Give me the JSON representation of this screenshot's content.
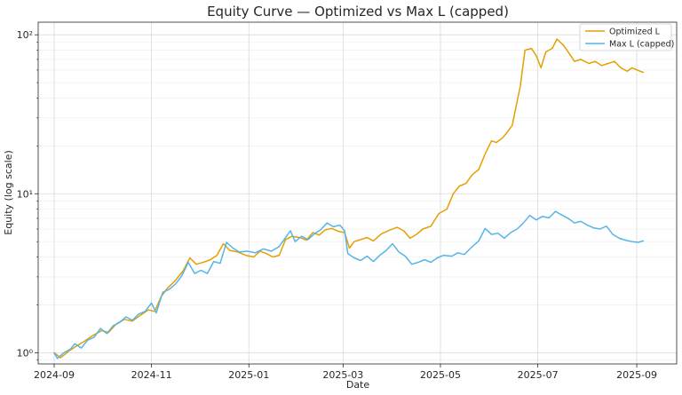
{
  "chart_data": {
    "type": "line",
    "title": "Equity Curve — Optimized vs Max L (capped)",
    "xlabel": "Date",
    "ylabel": "Equity (log scale)",
    "yscale": "log",
    "ylim": [
      0.85,
      120
    ],
    "xlim": [
      "2024-08-22",
      "2025-09-26"
    ],
    "grid": true,
    "legend_position": "top-right",
    "x_ticks": [
      "2024-09",
      "2024-11",
      "2025-01",
      "2025-03",
      "2025-05",
      "2025-07",
      "2025-09"
    ],
    "y_ticks": [
      {
        "value": 1,
        "label": "10⁰"
      },
      {
        "value": 10,
        "label": "10¹"
      },
      {
        "value": 100,
        "label": "10²"
      }
    ],
    "series": [
      {
        "name": "Optimized L",
        "color": "#E69F00",
        "points": [
          [
            "2024-09-01",
            1.0
          ],
          [
            "2024-09-05",
            0.93
          ],
          [
            "2024-09-10",
            1.02
          ],
          [
            "2024-09-15",
            1.1
          ],
          [
            "2024-09-20",
            1.18
          ],
          [
            "2024-09-25",
            1.28
          ],
          [
            "2024-10-01",
            1.38
          ],
          [
            "2024-10-05",
            1.34
          ],
          [
            "2024-10-10",
            1.52
          ],
          [
            "2024-10-15",
            1.62
          ],
          [
            "2024-10-20",
            1.58
          ],
          [
            "2024-10-25",
            1.72
          ],
          [
            "2024-10-30",
            1.86
          ],
          [
            "2024-11-03",
            1.82
          ],
          [
            "2024-11-07",
            2.25
          ],
          [
            "2024-11-11",
            2.55
          ],
          [
            "2024-11-16",
            2.85
          ],
          [
            "2024-11-21",
            3.3
          ],
          [
            "2024-11-25",
            3.95
          ],
          [
            "2024-11-29",
            3.6
          ],
          [
            "2024-12-04",
            3.72
          ],
          [
            "2024-12-08",
            3.85
          ],
          [
            "2024-12-12",
            4.1
          ],
          [
            "2024-12-16",
            4.85
          ],
          [
            "2024-12-20",
            4.4
          ],
          [
            "2024-12-25",
            4.3
          ],
          [
            "2024-12-30",
            4.1
          ],
          [
            "2025-01-04",
            4.0
          ],
          [
            "2025-01-08",
            4.35
          ],
          [
            "2025-01-12",
            4.2
          ],
          [
            "2025-01-16",
            4.0
          ],
          [
            "2025-01-20",
            4.1
          ],
          [
            "2025-01-24",
            5.15
          ],
          [
            "2025-01-28",
            5.4
          ],
          [
            "2025-02-02",
            5.3
          ],
          [
            "2025-02-06",
            5.1
          ],
          [
            "2025-02-10",
            5.7
          ],
          [
            "2025-02-14",
            5.5
          ],
          [
            "2025-02-18",
            5.95
          ],
          [
            "2025-02-22",
            6.05
          ],
          [
            "2025-02-26",
            5.8
          ],
          [
            "2025-03-02",
            5.7
          ],
          [
            "2025-03-05",
            4.55
          ],
          [
            "2025-03-08",
            5.0
          ],
          [
            "2025-03-12",
            5.15
          ],
          [
            "2025-03-16",
            5.3
          ],
          [
            "2025-03-20",
            5.05
          ],
          [
            "2025-03-25",
            5.6
          ],
          [
            "2025-03-30",
            5.9
          ],
          [
            "2025-04-04",
            6.15
          ],
          [
            "2025-04-08",
            5.85
          ],
          [
            "2025-04-12",
            5.25
          ],
          [
            "2025-04-16",
            5.55
          ],
          [
            "2025-04-20",
            6.0
          ],
          [
            "2025-04-25",
            6.25
          ],
          [
            "2025-04-30",
            7.5
          ],
          [
            "2025-05-05",
            8.0
          ],
          [
            "2025-05-09",
            10.0
          ],
          [
            "2025-05-13",
            11.2
          ],
          [
            "2025-05-17",
            11.6
          ],
          [
            "2025-05-21",
            13.2
          ],
          [
            "2025-05-25",
            14.2
          ],
          [
            "2025-05-29",
            17.8
          ],
          [
            "2025-06-02",
            21.5
          ],
          [
            "2025-06-05",
            21.0
          ],
          [
            "2025-06-09",
            22.5
          ],
          [
            "2025-06-12",
            24.5
          ],
          [
            "2025-06-15",
            27.0
          ],
          [
            "2025-06-18",
            38.0
          ],
          [
            "2025-06-20",
            47.0
          ],
          [
            "2025-06-23",
            80.0
          ],
          [
            "2025-06-27",
            82.0
          ],
          [
            "2025-06-30",
            74.0
          ],
          [
            "2025-07-03",
            62.0
          ],
          [
            "2025-07-06",
            78.0
          ],
          [
            "2025-07-10",
            82.0
          ],
          [
            "2025-07-13",
            94.0
          ],
          [
            "2025-07-17",
            86.0
          ],
          [
            "2025-07-20",
            78.0
          ],
          [
            "2025-07-24",
            68.0
          ],
          [
            "2025-07-28",
            70.0
          ],
          [
            "2025-08-02",
            66.0
          ],
          [
            "2025-08-06",
            68.0
          ],
          [
            "2025-08-10",
            64.0
          ],
          [
            "2025-08-14",
            66.0
          ],
          [
            "2025-08-18",
            68.0
          ],
          [
            "2025-08-22",
            62.0
          ],
          [
            "2025-08-26",
            59.0
          ],
          [
            "2025-08-29",
            62.0
          ],
          [
            "2025-09-03",
            59.0
          ],
          [
            "2025-09-05",
            58.0
          ]
        ]
      },
      {
        "name": "Max L (capped)",
        "color": "#56B4E9",
        "points": [
          [
            "2024-09-01",
            1.0
          ],
          [
            "2024-09-03",
            0.92
          ],
          [
            "2024-09-07",
            1.0
          ],
          [
            "2024-09-11",
            1.05
          ],
          [
            "2024-09-14",
            1.14
          ],
          [
            "2024-09-18",
            1.07
          ],
          [
            "2024-09-22",
            1.2
          ],
          [
            "2024-09-26",
            1.25
          ],
          [
            "2024-09-30",
            1.42
          ],
          [
            "2024-10-04",
            1.32
          ],
          [
            "2024-10-08",
            1.48
          ],
          [
            "2024-10-12",
            1.55
          ],
          [
            "2024-10-16",
            1.68
          ],
          [
            "2024-10-20",
            1.6
          ],
          [
            "2024-10-24",
            1.75
          ],
          [
            "2024-10-28",
            1.82
          ],
          [
            "2024-11-01",
            2.05
          ],
          [
            "2024-11-04",
            1.78
          ],
          [
            "2024-11-08",
            2.4
          ],
          [
            "2024-11-12",
            2.5
          ],
          [
            "2024-11-16",
            2.7
          ],
          [
            "2024-11-20",
            3.05
          ],
          [
            "2024-11-24",
            3.7
          ],
          [
            "2024-11-28",
            3.15
          ],
          [
            "2024-12-02",
            3.3
          ],
          [
            "2024-12-06",
            3.15
          ],
          [
            "2024-12-10",
            3.75
          ],
          [
            "2024-12-14",
            3.65
          ],
          [
            "2024-12-18",
            4.95
          ],
          [
            "2024-12-22",
            4.55
          ],
          [
            "2024-12-26",
            4.3
          ],
          [
            "2024-12-31",
            4.35
          ],
          [
            "2025-01-05",
            4.25
          ],
          [
            "2025-01-10",
            4.5
          ],
          [
            "2025-01-15",
            4.35
          ],
          [
            "2025-01-20",
            4.65
          ],
          [
            "2025-01-24",
            5.3
          ],
          [
            "2025-01-27",
            5.85
          ],
          [
            "2025-01-30",
            5.0
          ],
          [
            "2025-02-03",
            5.4
          ],
          [
            "2025-02-07",
            5.15
          ],
          [
            "2025-02-11",
            5.6
          ],
          [
            "2025-02-15",
            5.95
          ],
          [
            "2025-02-19",
            6.55
          ],
          [
            "2025-02-23",
            6.2
          ],
          [
            "2025-02-27",
            6.35
          ],
          [
            "2025-03-02",
            5.85
          ],
          [
            "2025-03-04",
            4.2
          ],
          [
            "2025-03-08",
            3.95
          ],
          [
            "2025-03-12",
            3.8
          ],
          [
            "2025-03-16",
            4.05
          ],
          [
            "2025-03-20",
            3.75
          ],
          [
            "2025-03-24",
            4.1
          ],
          [
            "2025-03-28",
            4.4
          ],
          [
            "2025-04-01",
            4.85
          ],
          [
            "2025-04-05",
            4.3
          ],
          [
            "2025-04-09",
            4.05
          ],
          [
            "2025-04-13",
            3.6
          ],
          [
            "2025-04-17",
            3.7
          ],
          [
            "2025-04-21",
            3.85
          ],
          [
            "2025-04-25",
            3.7
          ],
          [
            "2025-04-29",
            3.95
          ],
          [
            "2025-05-03",
            4.1
          ],
          [
            "2025-05-08",
            4.05
          ],
          [
            "2025-05-12",
            4.25
          ],
          [
            "2025-05-16",
            4.15
          ],
          [
            "2025-05-20",
            4.55
          ],
          [
            "2025-05-25",
            5.05
          ],
          [
            "2025-05-29",
            6.05
          ],
          [
            "2025-06-02",
            5.55
          ],
          [
            "2025-06-06",
            5.65
          ],
          [
            "2025-06-10",
            5.25
          ],
          [
            "2025-06-14",
            5.7
          ],
          [
            "2025-06-18",
            6.0
          ],
          [
            "2025-06-22",
            6.55
          ],
          [
            "2025-06-26",
            7.3
          ],
          [
            "2025-06-30",
            6.85
          ],
          [
            "2025-07-04",
            7.2
          ],
          [
            "2025-07-08",
            7.05
          ],
          [
            "2025-07-12",
            7.75
          ],
          [
            "2025-07-16",
            7.35
          ],
          [
            "2025-07-20",
            7.0
          ],
          [
            "2025-07-24",
            6.55
          ],
          [
            "2025-07-28",
            6.7
          ],
          [
            "2025-08-01",
            6.35
          ],
          [
            "2025-08-05",
            6.1
          ],
          [
            "2025-08-09",
            6.0
          ],
          [
            "2025-08-13",
            6.25
          ],
          [
            "2025-08-17",
            5.55
          ],
          [
            "2025-08-21",
            5.25
          ],
          [
            "2025-08-25",
            5.1
          ],
          [
            "2025-08-29",
            5.0
          ],
          [
            "2025-09-02",
            4.95
          ],
          [
            "2025-09-05",
            5.05
          ]
        ]
      }
    ]
  }
}
